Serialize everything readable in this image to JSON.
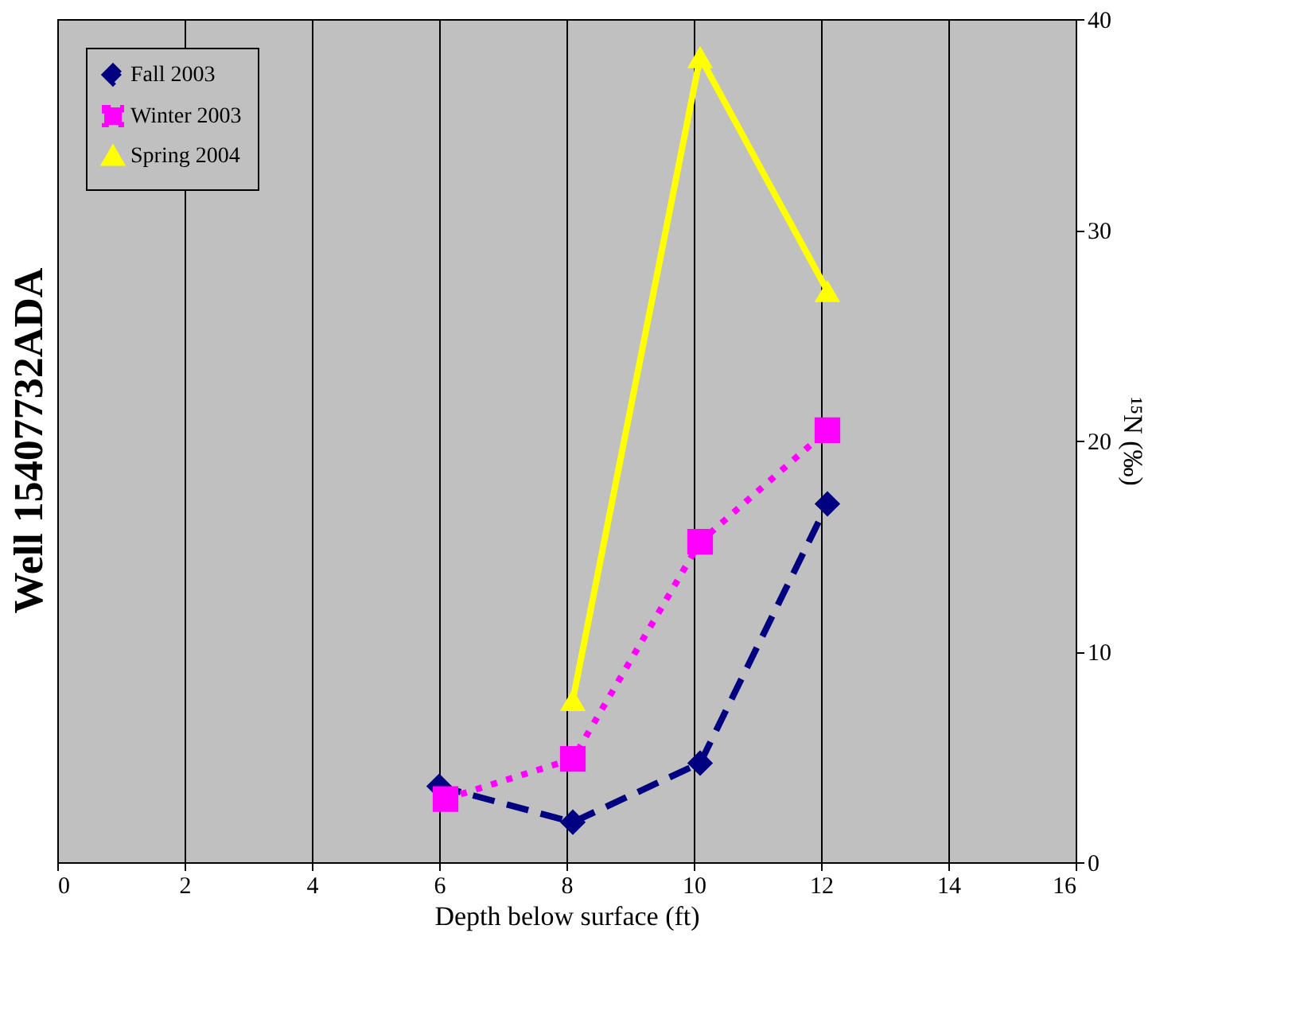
{
  "chart_data": {
    "type": "line",
    "title": "Well 15407732ADA",
    "xlabel": "Depth below surface (ft)",
    "ylabel": "¹⁵N (‰)",
    "series": [
      {
        "name": "Fall 2003",
        "color": "#000080",
        "marker": "diamond",
        "line_style": "dashed",
        "x": [
          6.0,
          8.1,
          10.1,
          12.1
        ],
        "values": [
          3.6,
          1.9,
          4.7,
          17.0
        ]
      },
      {
        "name": "Winter 2003",
        "color": "#ff00ff",
        "marker": "square",
        "line_style": "dotted",
        "x": [
          6.1,
          8.1,
          10.1,
          12.1
        ],
        "values": [
          3.0,
          4.9,
          15.2,
          20.5
        ]
      },
      {
        "name": "Spring 2004",
        "color": "#ffff00",
        "marker": "triangle",
        "line_style": "solid",
        "x": [
          8.1,
          10.1,
          12.1
        ],
        "values": [
          7.7,
          38.2,
          27.1
        ]
      }
    ],
    "xlim": [
      0,
      16
    ],
    "xticks": [
      0,
      2,
      4,
      6,
      8,
      10,
      12,
      14,
      16
    ],
    "ylim": [
      0,
      40
    ],
    "yticks": [
      0,
      10,
      20,
      30,
      40
    ],
    "grid": "x",
    "legend": "top left"
  }
}
